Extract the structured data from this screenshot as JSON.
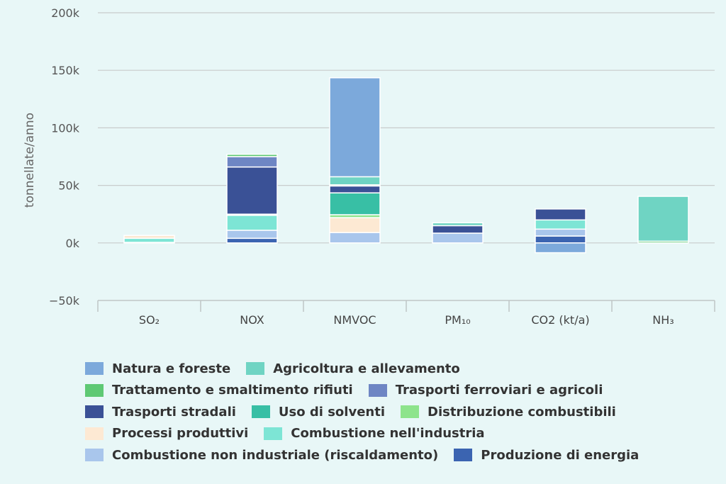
{
  "chart_data": {
    "type": "bar",
    "stacked": true,
    "title": "",
    "xlabel": "",
    "ylabel": "tonnellate/anno",
    "ylim": [
      -50000,
      200000
    ],
    "yticks": [
      -50000,
      0,
      50000,
      100000,
      150000,
      200000
    ],
    "ytick_labels": [
      "−50k",
      "0k",
      "50k",
      "100k",
      "150k",
      "200k"
    ],
    "categories": [
      "SO₂",
      "NOX",
      "NMVOC",
      "PM₁₀",
      "CO2 (kt/a)",
      "NH₃"
    ],
    "grid": true,
    "legend_position": "bottom",
    "series": [
      {
        "name": "Produzione di energia",
        "color": "#3b64b1",
        "values": [
          0,
          4000,
          0,
          0,
          6000,
          0
        ]
      },
      {
        "name": "Combustione non industriale (riscaldamento)",
        "color": "#a9c6ec",
        "values": [
          500,
          7000,
          9000,
          8500,
          6000,
          0
        ]
      },
      {
        "name": "Combustione nell'industria",
        "color": "#7de5d5",
        "values": [
          3500,
          13000,
          0,
          0,
          8000,
          0
        ]
      },
      {
        "name": "Processi produttivi",
        "color": "#fde9d3",
        "values": [
          2500,
          1000,
          13000,
          0,
          0,
          0
        ]
      },
      {
        "name": "Distribuzione combustibili",
        "color": "#8de48c",
        "values": [
          0,
          0,
          2500,
          0,
          0,
          0
        ]
      },
      {
        "name": "Uso di solventi",
        "color": "#38bfa5",
        "values": [
          0,
          0,
          19000,
          0,
          0,
          0
        ]
      },
      {
        "name": "Trasporti stradali",
        "color": "#3a5196",
        "values": [
          0,
          41000,
          6000,
          6500,
          9500,
          0
        ]
      },
      {
        "name": "Trasporti ferroviari e agricoli",
        "color": "#6e86c4",
        "values": [
          0,
          9000,
          0,
          0,
          0,
          0
        ]
      },
      {
        "name": "Trattamento e smaltimento rifiuti",
        "color": "#5ec974",
        "values": [
          0,
          2000,
          1000,
          0,
          0,
          1500
        ]
      },
      {
        "name": "Agricoltura e allevamento",
        "color": "#6fd4c3",
        "values": [
          0,
          0,
          7000,
          2500,
          0,
          39000
        ]
      },
      {
        "name": "Natura e foreste",
        "color": "#7ca9db",
        "values": [
          0,
          0,
          86000,
          0,
          -8500,
          0
        ]
      }
    ],
    "legend_rows": [
      [
        "Natura e foreste",
        "Agricoltura e allevamento"
      ],
      [
        "Trattamento e smaltimento rifiuti",
        "Trasporti ferroviari e agricoli"
      ],
      [
        "Trasporti stradali",
        "Uso di solventi",
        "Distribuzione combustibili"
      ],
      [
        "Processi produttivi",
        "Combustione nell'industria"
      ],
      [
        "Combustione non industriale (riscaldamento)",
        "Produzione di energia"
      ]
    ]
  }
}
